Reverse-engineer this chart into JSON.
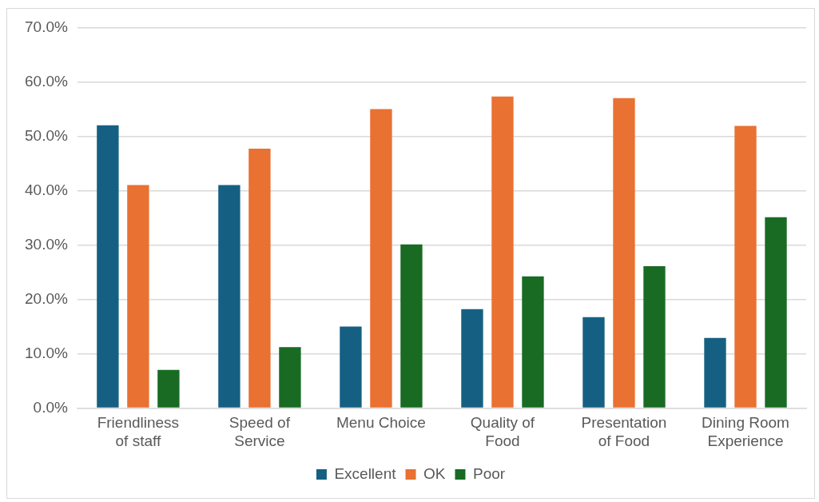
{
  "chart_data": {
    "type": "bar",
    "categories": [
      "Friendliness of staff",
      "Speed of Service",
      "Menu Choice",
      "Quality of Food",
      "Presentation of Food",
      "Dining Room Experience"
    ],
    "series": [
      {
        "name": "Excellent",
        "color": "#156082",
        "values": [
          52,
          41,
          15,
          18.2,
          16.7,
          12.9
        ]
      },
      {
        "name": "OK",
        "color": "#e97132",
        "values": [
          41,
          47.7,
          55,
          57.3,
          57,
          51.9
        ]
      },
      {
        "name": "Poor",
        "color": "#196b24",
        "values": [
          7,
          11.2,
          30.1,
          24.2,
          26.1,
          35.1
        ]
      }
    ],
    "ylim": [
      0,
      70
    ],
    "yticks": [
      {
        "value": 0,
        "label": "0.0%"
      },
      {
        "value": 10,
        "label": "10.0%"
      },
      {
        "value": 20,
        "label": "20.0%"
      },
      {
        "value": 30,
        "label": "30.0%"
      },
      {
        "value": 40,
        "label": "40.0%"
      },
      {
        "value": 50,
        "label": "50.0%"
      },
      {
        "value": 60,
        "label": "60.0%"
      },
      {
        "value": 70,
        "label": "70.0%"
      }
    ],
    "grid": "y",
    "legend": "bottom"
  }
}
